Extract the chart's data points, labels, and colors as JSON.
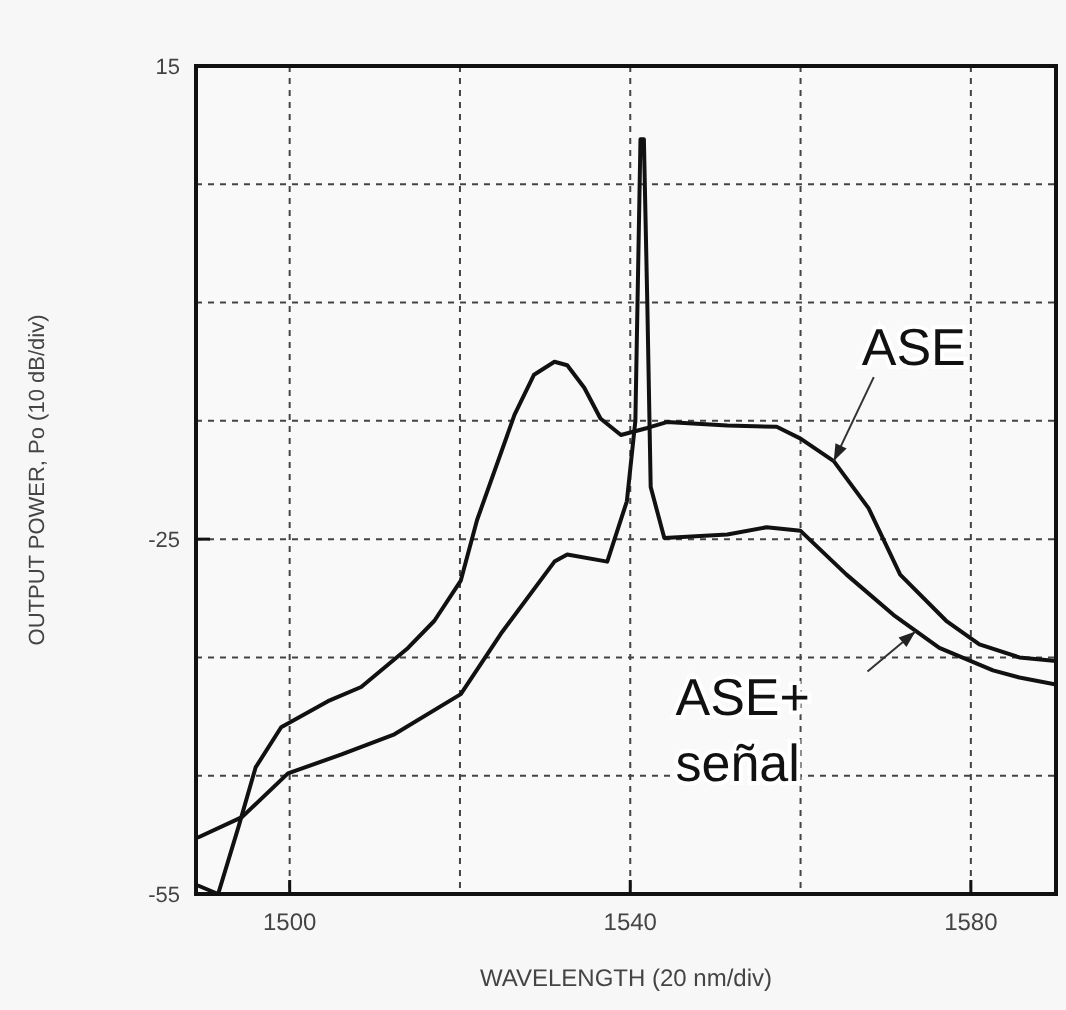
{
  "chart_data": {
    "type": "line",
    "xlabel": "WAVELENGTH (20 nm/div)",
    "ylabel": "OUTPUT POWER, Po (10 dB/div)",
    "xlim": [
      1489,
      1590
    ],
    "ylim": [
      -55,
      15
    ],
    "xticks": [
      1500,
      {
        "value": 1520,
        "label": null
      },
      1540,
      {
        "value": 1560,
        "label": null
      },
      1580
    ],
    "yticks": [
      -55,
      {
        "value": -45,
        "label": null
      },
      {
        "value": -35,
        "label": null
      },
      -25,
      {
        "value": -15,
        "label": null
      },
      {
        "value": -5,
        "label": null
      },
      {
        "value": 5,
        "label": null
      },
      15
    ],
    "grid": true,
    "marker": "none",
    "line_style": "solid",
    "series": [
      {
        "color": "#111111",
        "x": [
          1489.3,
          1491.6,
          1494,
          1496,
          1499,
          1504.5,
          1508.4,
          1513.9,
          1517,
          1520.1,
          1522,
          1526.4,
          1528.7,
          1531.1,
          1532.6,
          1534.6,
          1536.5,
          1538.9,
          1542,
          1544.3,
          1551.4,
          1557.2,
          1560,
          1563.9,
          1568,
          1571.7,
          1577.1,
          1581,
          1585.7,
          1590
        ],
        "values": [
          -54.3,
          -55,
          -49.3,
          -44.3,
          -40.9,
          -38.7,
          -37.5,
          -34.2,
          -31.9,
          -28.5,
          -23.4,
          -14.5,
          -11.1,
          -10,
          -10.3,
          -12.2,
          -14.8,
          -16.2,
          -15.6,
          -15.1,
          -15.4,
          -15.5,
          -16.5,
          -18.4,
          -22.4,
          -28,
          -31.9,
          -33.9,
          -35,
          -35.3
        ]
      },
      {
        "color": "#111111",
        "x": [
          1489.3,
          1494.4,
          1499.8,
          1506.1,
          1512.3,
          1520.1,
          1524.8,
          1531.1,
          1532.6,
          1537.3,
          1539.6,
          1540.6,
          1541.2,
          1541.6,
          1542,
          1542.4,
          1544,
          1551.4,
          1556,
          1560,
          1565.4,
          1570.9,
          1576.3,
          1582.6,
          1585.7,
          1590
        ],
        "values": [
          -50.2,
          -48.5,
          -44.8,
          -43.2,
          -41.5,
          -38.1,
          -33,
          -26.9,
          -26.3,
          -26.9,
          -21.8,
          -15,
          8.8,
          8.8,
          -5,
          -20.6,
          -24.9,
          -24.6,
          -24,
          -24.3,
          -28,
          -31.4,
          -34.2,
          -36.1,
          -36.7,
          -37.3
        ]
      }
    ],
    "annotations": [
      {
        "text": "ASE",
        "x": 1563.9,
        "y": -18.4
      },
      {
        "text": "ASE+\nseñal",
        "x": 1573.5,
        "y": -32.8
      }
    ]
  }
}
